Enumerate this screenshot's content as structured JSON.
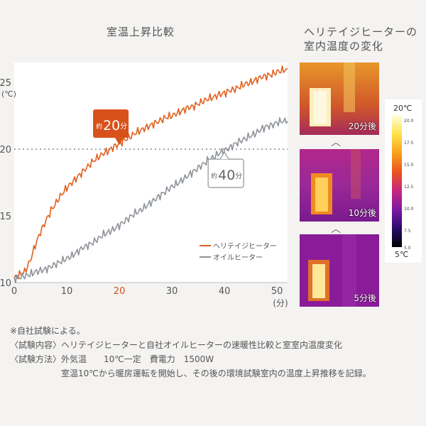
{
  "chart_title": "室温上昇比較",
  "thermal": {
    "title_line1": "ヘリテイジヒーターの",
    "title_line2": "室内温度の変化",
    "panels": [
      {
        "label": "20分後"
      },
      {
        "label": "10分後"
      },
      {
        "label": "5分後"
      }
    ],
    "scale": {
      "top": "20℃",
      "bottom": "5℃",
      "ticks": [
        "20.0",
        "17.5",
        "15.0",
        "12.5",
        "10.0",
        "7.5",
        "5.0"
      ]
    }
  },
  "notes": [
    "※自社試験による。",
    "〈試験内容〉ヘリテイジヒーターと自社オイルヒーターの速暖性比較と室室内温度変化",
    "〈試験方法〉外気温　　10℃一定　費電力　1500W",
    "　　　　　　室温10℃から暖房運転を開始し、その後の環境試験室内の温度上昇推移を記録。"
  ],
  "chart_data": {
    "type": "line",
    "title": "室温上昇比較",
    "xlabel": "(分)",
    "ylabel": "(℃)",
    "xlim": [
      0,
      52
    ],
    "ylim": [
      10,
      26.5
    ],
    "x_ticks": [
      0,
      10,
      20,
      30,
      40,
      50
    ],
    "y_ticks": [
      10,
      15,
      20,
      25
    ],
    "highlight_x_tick": 20,
    "reference_line": 20,
    "grid": false,
    "legend": "bottom-right",
    "series": [
      {
        "name": "ヘリテイジヒーター",
        "color": "#e0601e",
        "x": [
          0,
          1,
          2,
          3,
          4,
          5,
          6,
          7,
          8,
          9,
          10,
          11,
          12,
          13,
          14,
          15,
          16,
          17,
          18,
          19,
          20,
          21,
          22,
          23,
          24,
          25,
          26,
          27,
          28,
          29,
          30,
          31,
          32,
          33,
          34,
          35,
          36,
          37,
          38,
          39,
          40,
          41,
          42,
          43,
          44,
          45,
          46,
          47,
          48,
          49,
          50,
          51,
          52
        ],
        "y": [
          10.3,
          10.6,
          10.8,
          11.6,
          12.8,
          13.8,
          14.6,
          15.4,
          16.0,
          16.6,
          17.1,
          17.5,
          17.9,
          18.3,
          18.7,
          19.1,
          19.4,
          19.7,
          19.9,
          20.2,
          20.4,
          20.7,
          20.9,
          21.2,
          21.4,
          21.6,
          21.8,
          22.0,
          22.2,
          22.4,
          22.5,
          22.7,
          22.9,
          23.1,
          23.2,
          23.4,
          23.6,
          23.8,
          23.9,
          24.1,
          24.2,
          24.4,
          24.5,
          24.7,
          24.9,
          25.0,
          25.2,
          25.4,
          25.5,
          25.6,
          25.8,
          25.9,
          26.0
        ]
      },
      {
        "name": "オイルヒーター",
        "color": "#8e9399",
        "x": [
          0,
          1,
          2,
          3,
          4,
          5,
          6,
          7,
          8,
          9,
          10,
          11,
          12,
          13,
          14,
          15,
          16,
          17,
          18,
          19,
          20,
          21,
          22,
          23,
          24,
          25,
          26,
          27,
          28,
          29,
          30,
          31,
          32,
          33,
          34,
          35,
          36,
          37,
          38,
          39,
          40,
          41,
          42,
          43,
          44,
          45,
          46,
          47,
          48,
          49,
          50,
          51,
          52
        ],
        "y": [
          10.3,
          10.4,
          10.5,
          10.6,
          10.8,
          10.9,
          11.0,
          11.2,
          11.4,
          11.6,
          11.8,
          12.0,
          12.3,
          12.6,
          12.8,
          13.0,
          13.3,
          13.6,
          13.8,
          14.0,
          14.3,
          14.6,
          14.9,
          15.2,
          15.4,
          15.7,
          16.0,
          16.3,
          16.6,
          16.9,
          17.2,
          17.4,
          17.7,
          18.0,
          18.3,
          18.6,
          18.9,
          19.2,
          19.4,
          19.7,
          19.9,
          20.1,
          20.4,
          20.6,
          20.8,
          21.0,
          21.2,
          21.5,
          21.7,
          21.8,
          22.0,
          22.1,
          22.1
        ]
      }
    ],
    "annotations": [
      {
        "prefix": "約",
        "value": "20",
        "unit": "分",
        "x": 20,
        "series": 0,
        "style": "filled",
        "color": "#d8501a"
      },
      {
        "prefix": "約",
        "value": "40",
        "unit": "分",
        "x": 40,
        "series": 1,
        "style": "outline",
        "color": "#8e9399"
      }
    ]
  }
}
